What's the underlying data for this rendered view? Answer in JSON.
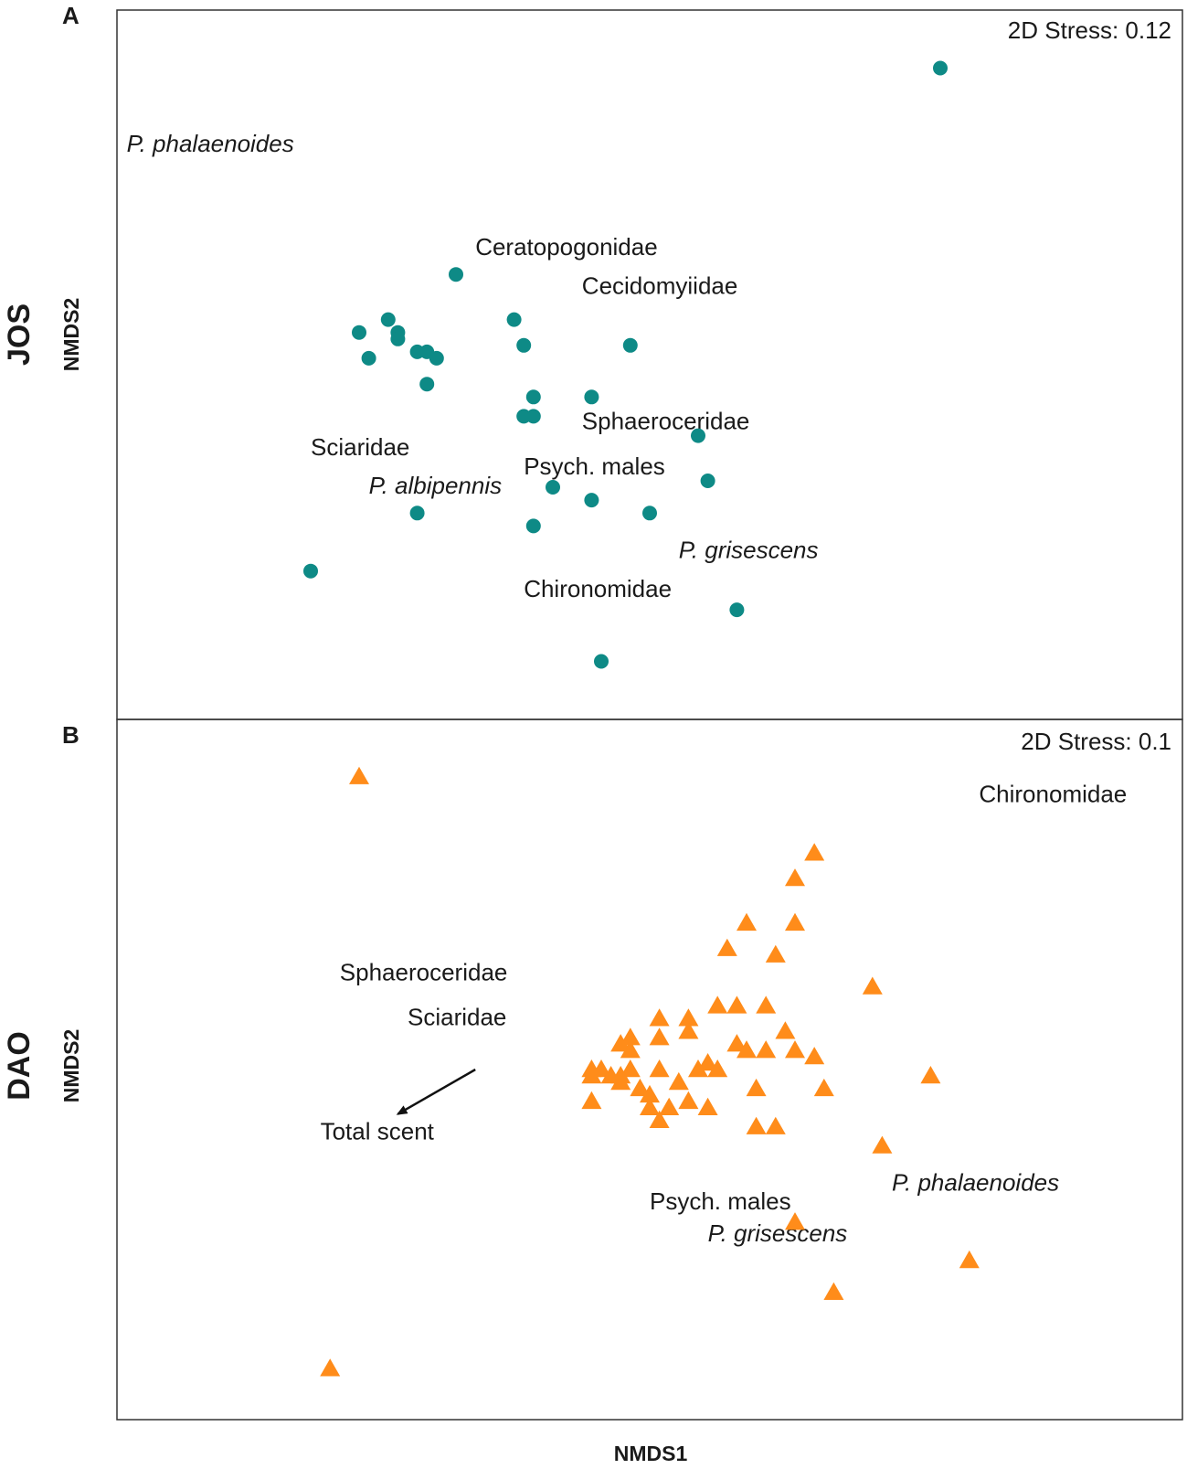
{
  "figure": {
    "xlabel": "NMDS1"
  },
  "chart_data": [
    {
      "type": "scatter",
      "panel": "A",
      "site": "JOS",
      "ylabel": "NMDS2",
      "stress_text": "2D Stress: 0.12",
      "marker": "circle",
      "color": "#0e8a86",
      "xlim": [
        0,
        1.1
      ],
      "ylim": [
        0,
        1.1
      ],
      "points": [
        [
          0.85,
          1.01
        ],
        [
          0.35,
          0.69
        ],
        [
          0.25,
          0.6
        ],
        [
          0.28,
          0.62
        ],
        [
          0.29,
          0.6
        ],
        [
          0.29,
          0.59
        ],
        [
          0.31,
          0.57
        ],
        [
          0.32,
          0.57
        ],
        [
          0.33,
          0.56
        ],
        [
          0.26,
          0.56
        ],
        [
          0.32,
          0.52
        ],
        [
          0.41,
          0.62
        ],
        [
          0.42,
          0.58
        ],
        [
          0.53,
          0.58
        ],
        [
          0.42,
          0.47
        ],
        [
          0.43,
          0.47
        ],
        [
          0.43,
          0.5
        ],
        [
          0.49,
          0.5
        ],
        [
          0.6,
          0.44
        ],
        [
          0.61,
          0.37
        ],
        [
          0.45,
          0.36
        ],
        [
          0.49,
          0.34
        ],
        [
          0.55,
          0.32
        ],
        [
          0.43,
          0.3
        ],
        [
          0.31,
          0.32
        ],
        [
          0.2,
          0.23
        ],
        [
          0.64,
          0.17
        ],
        [
          0.5,
          0.09
        ]
      ],
      "labels": [
        {
          "text": "P. phalaenoides",
          "italic": true,
          "x": 0.01,
          "y": 0.88
        },
        {
          "text": "Ceratopogonidae",
          "italic": false,
          "x": 0.37,
          "y": 0.72
        },
        {
          "text": "Cecidomyiidae",
          "italic": false,
          "x": 0.48,
          "y": 0.66
        },
        {
          "text": "Sphaeroceridae",
          "italic": false,
          "x": 0.48,
          "y": 0.45
        },
        {
          "text": "Sciaridae",
          "italic": false,
          "x": 0.2,
          "y": 0.41
        },
        {
          "text": "Psych. males",
          "italic": false,
          "x": 0.42,
          "y": 0.38
        },
        {
          "text": "P. albipennis",
          "italic": true,
          "x": 0.26,
          "y": 0.35
        },
        {
          "text": "P. grisescens",
          "italic": true,
          "x": 0.58,
          "y": 0.25
        },
        {
          "text": "Chironomidae",
          "italic": false,
          "x": 0.42,
          "y": 0.19
        }
      ]
    },
    {
      "type": "scatter",
      "panel": "B",
      "site": "DAO",
      "ylabel": "NMDS2",
      "stress_text": "2D Stress: 0.1",
      "marker": "triangle",
      "color": "#ff8c1a",
      "xlim": [
        0,
        1.1
      ],
      "ylim": [
        0,
        1.1
      ],
      "points": [
        [
          0.25,
          1.01
        ],
        [
          0.72,
          0.89
        ],
        [
          0.7,
          0.85
        ],
        [
          0.65,
          0.78
        ],
        [
          0.7,
          0.78
        ],
        [
          0.63,
          0.74
        ],
        [
          0.68,
          0.73
        ],
        [
          0.78,
          0.68
        ],
        [
          0.62,
          0.65
        ],
        [
          0.64,
          0.65
        ],
        [
          0.67,
          0.65
        ],
        [
          0.56,
          0.63
        ],
        [
          0.59,
          0.63
        ],
        [
          0.59,
          0.61
        ],
        [
          0.69,
          0.61
        ],
        [
          0.56,
          0.6
        ],
        [
          0.52,
          0.59
        ],
        [
          0.53,
          0.6
        ],
        [
          0.53,
          0.58
        ],
        [
          0.64,
          0.59
        ],
        [
          0.65,
          0.58
        ],
        [
          0.67,
          0.58
        ],
        [
          0.7,
          0.58
        ],
        [
          0.72,
          0.57
        ],
        [
          0.61,
          0.56
        ],
        [
          0.62,
          0.55
        ],
        [
          0.5,
          0.55
        ],
        [
          0.51,
          0.54
        ],
        [
          0.52,
          0.54
        ],
        [
          0.53,
          0.55
        ],
        [
          0.49,
          0.55
        ],
        [
          0.49,
          0.54
        ],
        [
          0.56,
          0.55
        ],
        [
          0.6,
          0.55
        ],
        [
          0.52,
          0.53
        ],
        [
          0.58,
          0.53
        ],
        [
          0.54,
          0.52
        ],
        [
          0.66,
          0.52
        ],
        [
          0.73,
          0.52
        ],
        [
          0.84,
          0.54
        ],
        [
          0.49,
          0.5
        ],
        [
          0.55,
          0.51
        ],
        [
          0.55,
          0.49
        ],
        [
          0.59,
          0.5
        ],
        [
          0.61,
          0.49
        ],
        [
          0.56,
          0.47
        ],
        [
          0.57,
          0.49
        ],
        [
          0.66,
          0.46
        ],
        [
          0.68,
          0.46
        ],
        [
          0.79,
          0.43
        ],
        [
          0.7,
          0.31
        ],
        [
          0.88,
          0.25
        ],
        [
          0.74,
          0.2
        ],
        [
          0.22,
          0.08
        ]
      ],
      "labels": [
        {
          "text": "Chironomidae",
          "italic": false,
          "x": 0.89,
          "y": 0.97
        },
        {
          "text": "Sphaeroceridae",
          "italic": false,
          "x": 0.23,
          "y": 0.69
        },
        {
          "text": "Sciaridae",
          "italic": false,
          "x": 0.3,
          "y": 0.62
        },
        {
          "text": "Total scent",
          "italic": false,
          "x": 0.21,
          "y": 0.44
        },
        {
          "text": "P. phalaenoides",
          "italic": true,
          "x": 0.8,
          "y": 0.36
        },
        {
          "text": "Psych. males",
          "italic": false,
          "x": 0.55,
          "y": 0.33
        },
        {
          "text": "P. grisescens",
          "italic": true,
          "x": 0.61,
          "y": 0.28
        }
      ],
      "arrow": {
        "from": [
          0.37,
          0.55
        ],
        "to": [
          0.29,
          0.48
        ]
      }
    }
  ]
}
